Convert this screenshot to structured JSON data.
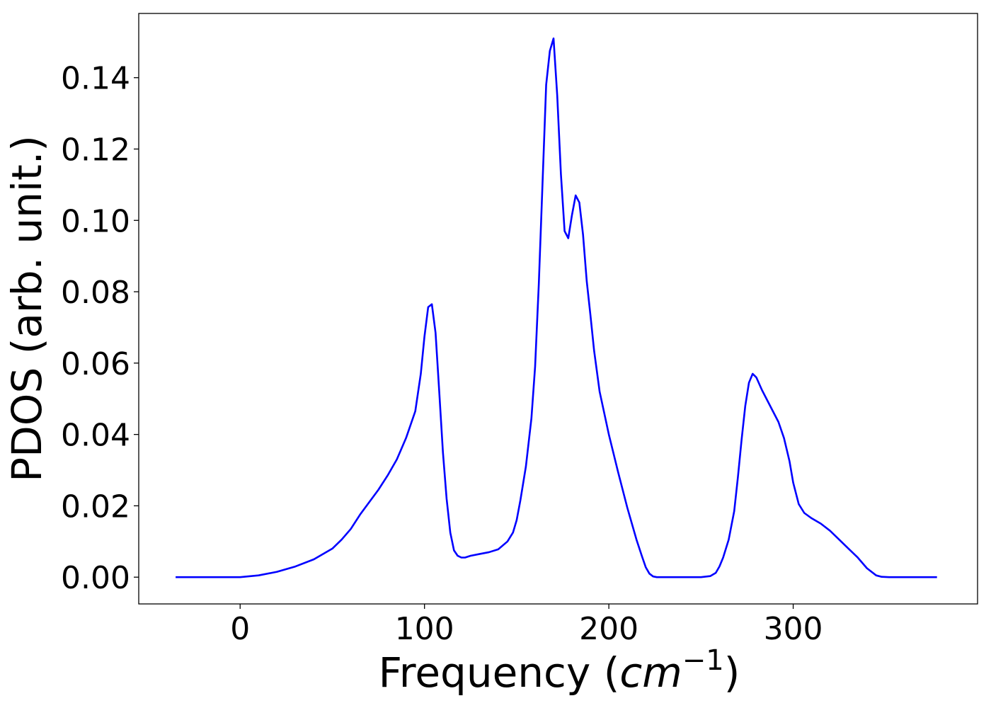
{
  "chart_data": {
    "type": "line",
    "title": "",
    "xlabel": "Frequency (",
    "xlabel_math": "cm",
    "xlabel_sup": "−1",
    "xlabel_close": ")",
    "ylabel": "PDOS (arb. unit.)",
    "xlim": [
      -55,
      400
    ],
    "ylim": [
      -0.0075,
      0.158
    ],
    "xticks": [
      0,
      100,
      200,
      300
    ],
    "xtick_labels": [
      "0",
      "100",
      "200",
      "300"
    ],
    "yticks": [
      0.0,
      0.02,
      0.04,
      0.06,
      0.08,
      0.1,
      0.12,
      0.14
    ],
    "ytick_labels": [
      "0.00",
      "0.02",
      "0.04",
      "0.06",
      "0.08",
      "0.10",
      "0.12",
      "0.14"
    ],
    "grid": false,
    "line_color": "#0000ff",
    "series": [
      {
        "x": [
          -35,
          -20,
          -5,
          0,
          10,
          20,
          30,
          40,
          50,
          55,
          60,
          65,
          70,
          75,
          80,
          85,
          90,
          95,
          98,
          100,
          102,
          104,
          106,
          108,
          110,
          112,
          114,
          116,
          118,
          120,
          122,
          125,
          130,
          135,
          140,
          145,
          148,
          150,
          152,
          155,
          158,
          160,
          162,
          164,
          166,
          168,
          170,
          172,
          174,
          176,
          178,
          180,
          182,
          184,
          186,
          188,
          190,
          192,
          195,
          200,
          205,
          210,
          215,
          218,
          220,
          222,
          224,
          226,
          230,
          240,
          250,
          255,
          258,
          260,
          262,
          265,
          268,
          270,
          272,
          274,
          276,
          278,
          280,
          283,
          286,
          289,
          292,
          295,
          298,
          300,
          303,
          306,
          310,
          315,
          320,
          325,
          330,
          335,
          340,
          345,
          348,
          352,
          360,
          370,
          378
        ],
        "y": [
          0.0,
          0.0,
          0.0,
          0.0,
          0.0005,
          0.0015,
          0.003,
          0.005,
          0.008,
          0.0105,
          0.0135,
          0.0175,
          0.021,
          0.0245,
          0.0285,
          0.033,
          0.039,
          0.0465,
          0.057,
          0.0675,
          0.0757,
          0.0765,
          0.0685,
          0.052,
          0.035,
          0.022,
          0.0125,
          0.0075,
          0.006,
          0.0055,
          0.0055,
          0.006,
          0.0065,
          0.007,
          0.0078,
          0.01,
          0.0125,
          0.016,
          0.0215,
          0.031,
          0.0445,
          0.059,
          0.082,
          0.11,
          0.138,
          0.1475,
          0.151,
          0.135,
          0.113,
          0.097,
          0.095,
          0.1015,
          0.107,
          0.105,
          0.096,
          0.083,
          0.0735,
          0.0635,
          0.052,
          0.04,
          0.0295,
          0.0195,
          0.0105,
          0.0058,
          0.0028,
          0.001,
          0.0002,
          0.0,
          0.0,
          0.0,
          0.0,
          0.0003,
          0.0012,
          0.003,
          0.0055,
          0.0105,
          0.0185,
          0.028,
          0.0385,
          0.048,
          0.0545,
          0.057,
          0.056,
          0.0525,
          0.0495,
          0.0465,
          0.0435,
          0.039,
          0.0325,
          0.0265,
          0.0205,
          0.018,
          0.0165,
          0.015,
          0.013,
          0.0105,
          0.008,
          0.0055,
          0.0025,
          0.0005,
          0.0001,
          0.0,
          0.0,
          0.0,
          0.0
        ]
      }
    ]
  }
}
